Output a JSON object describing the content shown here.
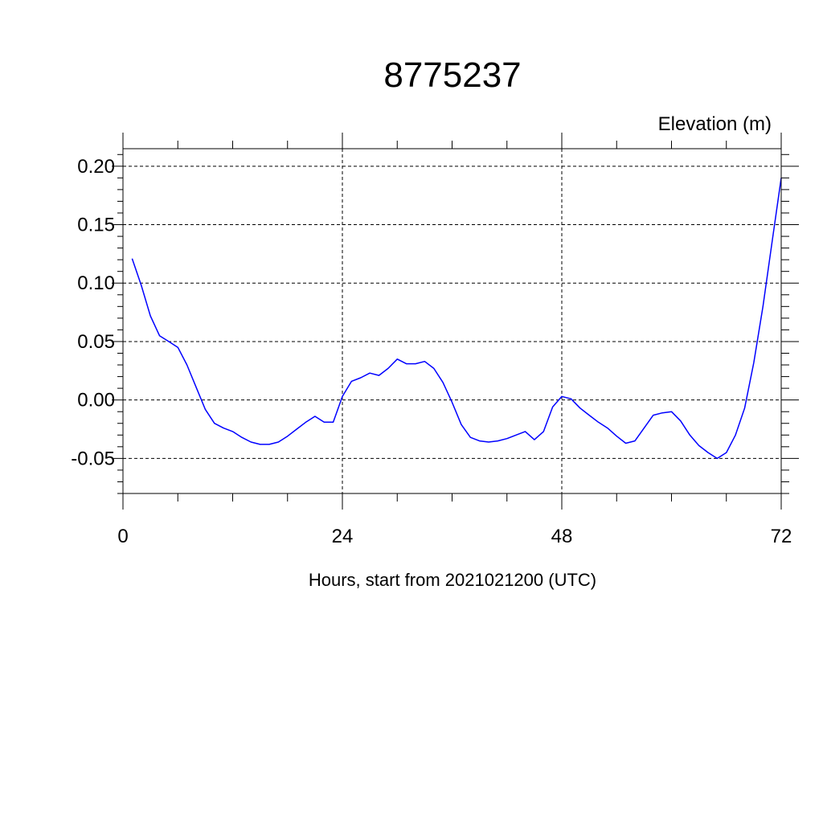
{
  "chart_data": {
    "type": "line",
    "title": "8775237",
    "ylabel": "Elevation (m)",
    "xlabel": "Hours, start from 2021021200 (UTC)",
    "xlim": [
      0,
      72
    ],
    "ylim": [
      -0.08,
      0.215
    ],
    "x_ticks": [
      0,
      24,
      48,
      72
    ],
    "x_tick_labels": [
      "0",
      "24",
      "48",
      "72"
    ],
    "y_ticks": [
      0.2,
      0.15,
      0.1,
      0.05,
      0.0,
      -0.05
    ],
    "y_tick_labels": [
      "0.20",
      "0.15",
      "0.10",
      "0.05",
      "0.00",
      "-0.05"
    ],
    "grid": true,
    "series": [
      {
        "color": "#0000ff",
        "x": [
          1,
          2,
          3,
          4,
          5,
          6,
          7,
          8,
          9,
          10,
          11,
          12,
          13,
          14,
          15,
          16,
          17,
          18,
          19,
          20,
          21,
          22,
          23,
          24,
          25,
          26,
          27,
          28,
          29,
          30,
          31,
          32,
          33,
          34,
          35,
          36,
          37,
          38,
          39,
          40,
          41,
          42,
          43,
          44,
          45,
          46,
          47,
          48,
          49,
          50,
          51,
          52,
          53,
          54,
          55,
          56,
          57,
          58,
          59,
          60,
          61,
          62,
          63,
          64,
          65,
          66,
          67,
          68,
          69,
          70,
          71,
          72
        ],
        "y": [
          0.121,
          0.098,
          0.072,
          0.055,
          0.05,
          0.045,
          0.03,
          0.011,
          -0.008,
          -0.02,
          -0.024,
          -0.027,
          -0.032,
          -0.036,
          -0.038,
          -0.038,
          -0.036,
          -0.031,
          -0.025,
          -0.019,
          -0.014,
          -0.019,
          -0.019,
          0.003,
          0.016,
          0.019,
          0.023,
          0.021,
          0.027,
          0.035,
          0.031,
          0.031,
          0.033,
          0.027,
          0.015,
          -0.002,
          -0.021,
          -0.032,
          -0.035,
          -0.036,
          -0.035,
          -0.033,
          -0.03,
          -0.027,
          -0.034,
          -0.027,
          -0.006,
          0.003,
          0.001,
          -0.007,
          -0.013,
          -0.019,
          -0.024,
          -0.031,
          -0.037,
          -0.035,
          -0.024,
          -0.013,
          -0.011,
          -0.01,
          -0.018,
          -0.03,
          -0.039,
          -0.045,
          -0.05,
          -0.045,
          -0.03,
          -0.007,
          0.032,
          0.08,
          0.135,
          0.19
        ]
      }
    ]
  }
}
